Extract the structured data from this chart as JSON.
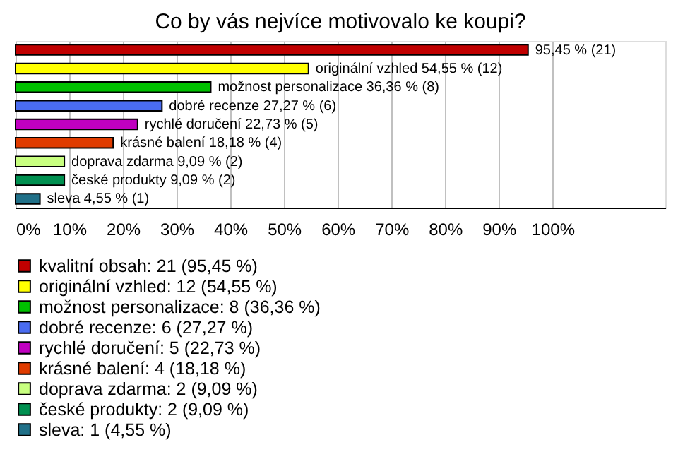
{
  "chart_data": {
    "type": "bar",
    "orientation": "horizontal",
    "title": "Co by vás nejvíce motivovalo ke koupi?",
    "categories": [
      null,
      null,
      null,
      null,
      null,
      null,
      null,
      null,
      null
    ],
    "series": [
      {
        "name": "kvalitní obsah: 21 (95,45 %)",
        "color": "#c00000",
        "values": [
          95.45,
          null,
          null,
          null,
          null,
          null,
          null,
          null,
          null
        ],
        "value_labels": [
          "95,45 % (21)",
          null,
          null,
          null,
          null,
          null,
          null,
          null,
          null
        ]
      },
      {
        "name": "originální vzhled: 12 (54,55 %)",
        "color": "#ffff00",
        "values": [
          null,
          54.55,
          null,
          null,
          null,
          null,
          null,
          null,
          null
        ],
        "value_labels": [
          null,
          "originální vzhled 54,55 % (12)",
          null,
          null,
          null,
          null,
          null,
          null,
          null
        ]
      },
      {
        "name": "možnost personalizace: 8 (36,36 %)",
        "color": "#00c000",
        "values": [
          null,
          null,
          36.36,
          null,
          null,
          null,
          null,
          null,
          null
        ],
        "value_labels": [
          null,
          null,
          "možnost personalizace 36,36 % (8)",
          null,
          null,
          null,
          null,
          null,
          null
        ]
      },
      {
        "name": "dobré recenze: 6 (27,27 %)",
        "color": "#4a6cf0",
        "values": [
          null,
          null,
          null,
          27.27,
          null,
          null,
          null,
          null,
          null
        ],
        "value_labels": [
          null,
          null,
          null,
          "dobré recenze 27,27 % (6)",
          null,
          null,
          null,
          null,
          null
        ]
      },
      {
        "name": "rychlé doručení: 5 (22,73 %)",
        "color": "#c000c0",
        "values": [
          null,
          null,
          null,
          null,
          22.73,
          null,
          null,
          null,
          null
        ],
        "value_labels": [
          null,
          null,
          null,
          null,
          "rychlé doručení 22,73 % (5)",
          null,
          null,
          null,
          null
        ]
      },
      {
        "name": "krásné balení: 4 (18,18 %)",
        "color": "#e03c00",
        "values": [
          null,
          null,
          null,
          null,
          null,
          18.18,
          null,
          null,
          null
        ],
        "value_labels": [
          null,
          null,
          null,
          null,
          null,
          "krásné balení 18,18 % (4)",
          null,
          null,
          null
        ]
      },
      {
        "name": "doprava zdarma: 2 (9,09 %)",
        "color": "#c8ff80",
        "values": [
          null,
          null,
          null,
          null,
          null,
          null,
          9.09,
          null,
          null
        ],
        "value_labels": [
          null,
          null,
          null,
          null,
          null,
          null,
          "doprava zdarma 9,09 % (2)",
          null,
          null
        ]
      },
      {
        "name": "české produkty: 2 (9,09 %)",
        "color": "#009050",
        "values": [
          null,
          null,
          null,
          null,
          null,
          null,
          null,
          9.09,
          null
        ],
        "value_labels": [
          null,
          null,
          null,
          null,
          null,
          null,
          null,
          "české produkty 9,09 % (2)",
          null
        ]
      },
      {
        "name": "sleva: 1 (4,55 %)",
        "color": "#207088",
        "values": [
          null,
          null,
          null,
          null,
          null,
          null,
          null,
          null,
          4.55
        ],
        "value_labels": [
          null,
          null,
          null,
          null,
          null,
          null,
          null,
          null,
          "sleva 4,55 % (1)"
        ]
      }
    ],
    "xlim": [
      0,
      121
    ],
    "xticks": [
      {
        "value": 0,
        "label": "0%"
      },
      {
        "value": 10,
        "label": "10%"
      },
      {
        "value": 20,
        "label": "20%"
      },
      {
        "value": 30,
        "label": "30%"
      },
      {
        "value": 40,
        "label": "40%"
      },
      {
        "value": 50,
        "label": "50%"
      },
      {
        "value": 60,
        "label": "60%"
      },
      {
        "value": 70,
        "label": "70%"
      },
      {
        "value": 80,
        "label": "80%"
      },
      {
        "value": 90,
        "label": "90%"
      },
      {
        "value": 100,
        "label": "100%"
      }
    ],
    "grid": "x",
    "legend": "bottom left",
    "tick_labels": "x"
  }
}
